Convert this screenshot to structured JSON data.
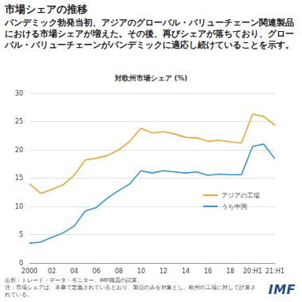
{
  "title": "市場シェアの推移",
  "subtitle": "パンデミック勃発当初、アジアのグローバル・バリューチェーン関連製品における市場シェアが増えた。その後、再びシェアが落ちており、グローバル・バリューチェーンがパンデミックに適応し続けていることを示す。",
  "source": "出所：トレード・データ・モニター、IMF職員の試算。",
  "note": "注：市場シェアは、本章で定義されているとおり、製品のみを対象とし、欧州の工場に対して計算されている。",
  "logo": "IMF",
  "chart_data": {
    "type": "line",
    "title": "対欧州市場シェア (%)",
    "categories": [
      "2000",
      null,
      "02",
      null,
      "04",
      null,
      "06",
      null,
      "08",
      null,
      "10",
      null,
      "12",
      null,
      "14",
      null,
      "16",
      null,
      "18",
      null,
      "20:H1",
      null,
      "21:H1"
    ],
    "series": [
      {
        "name": "アジアの工場",
        "color": "#f0a830",
        "values": [
          14,
          12.3,
          13,
          13.8,
          15.5,
          18.2,
          18.5,
          19,
          20,
          21.5,
          23.8,
          23,
          23.2,
          22.8,
          22.2,
          22.1,
          21.5,
          21.7,
          21.4,
          21.2,
          26.3,
          25.9,
          24.3
        ]
      },
      {
        "name": "うち中国",
        "color": "#2f98d5",
        "values": [
          3.5,
          3.7,
          4.5,
          5.3,
          6.5,
          9.2,
          9.8,
          11.5,
          12.8,
          14,
          16.3,
          15.9,
          16.3,
          16.1,
          15.9,
          16.1,
          15.5,
          15.7,
          15.6,
          15.6,
          20.6,
          21,
          18.4
        ]
      }
    ],
    "ylim": [
      0,
      30
    ],
    "yticks": [
      0,
      5,
      10,
      15,
      20,
      25,
      30
    ],
    "grid": true,
    "legend": "lower right"
  }
}
